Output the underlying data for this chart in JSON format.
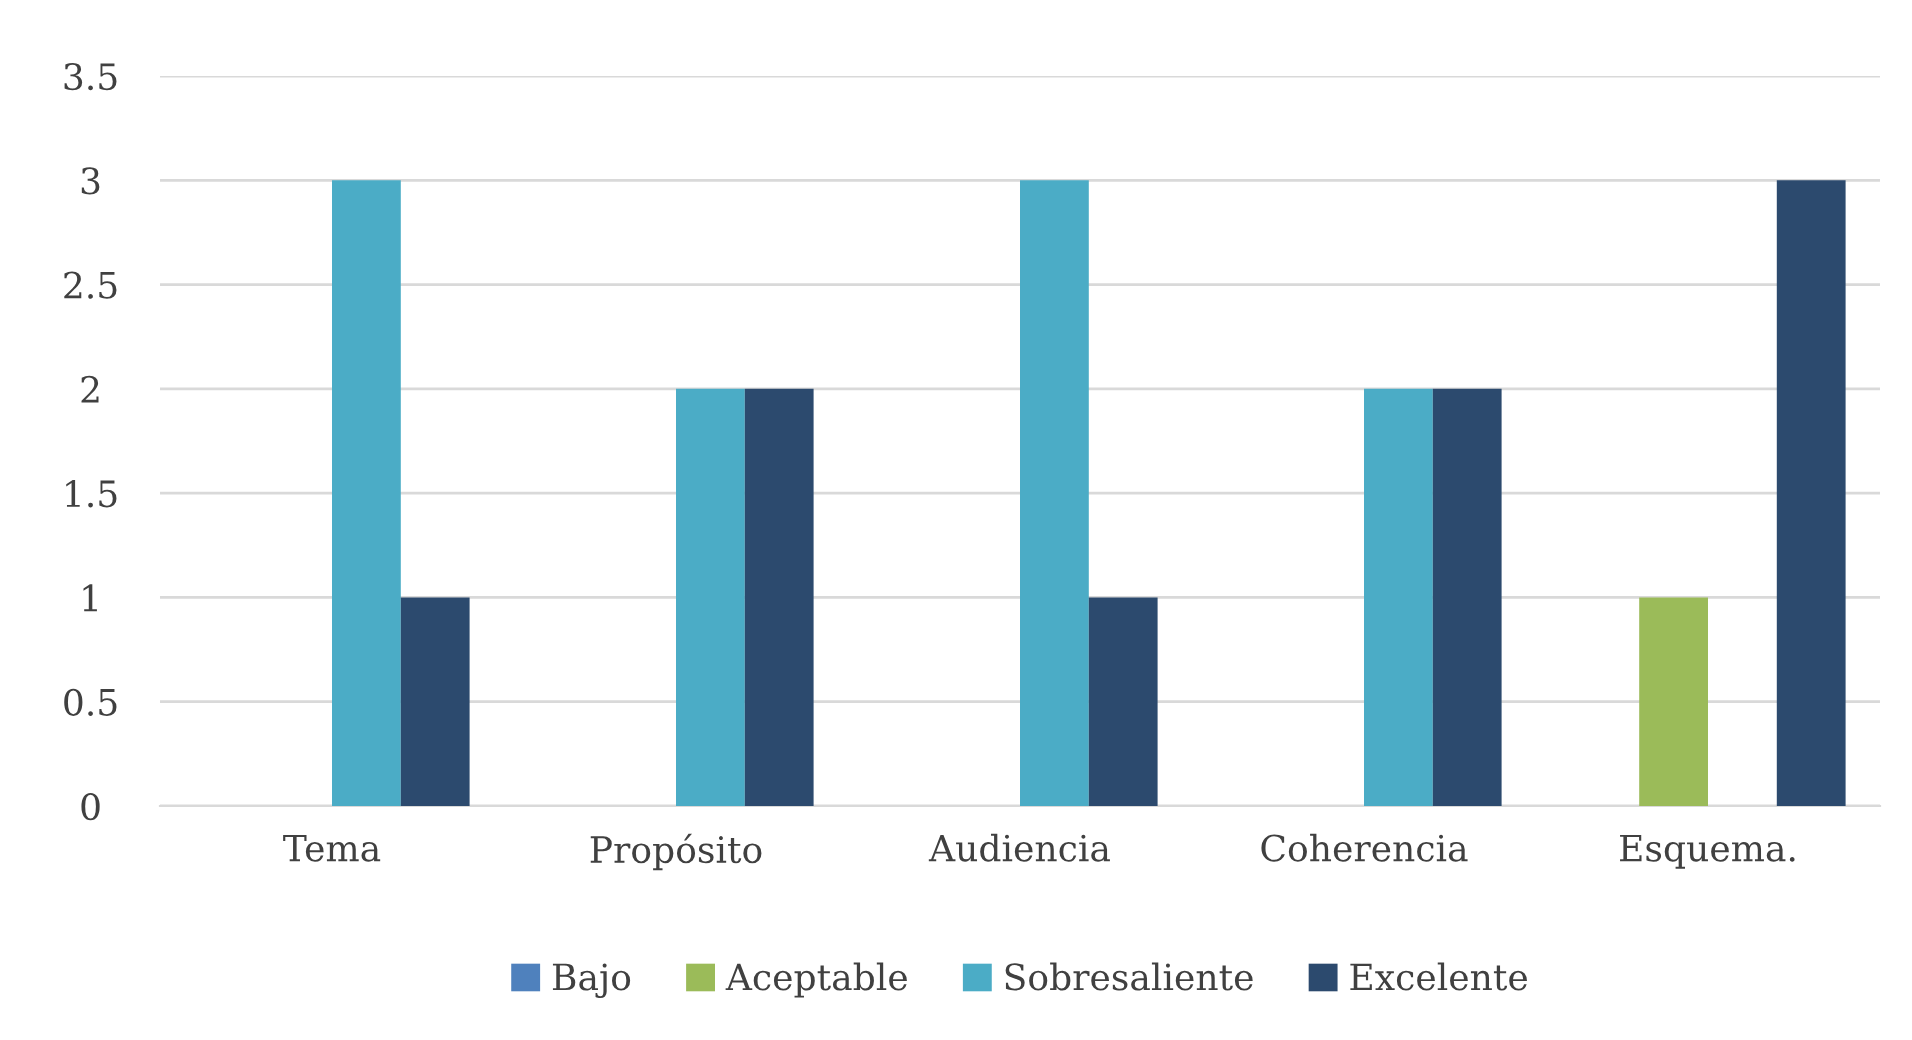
{
  "chart_data": {
    "type": "bar",
    "categories": [
      "Tema",
      "Propósito",
      "Audiencia",
      "Coherencia",
      "Esquema."
    ],
    "series": [
      {
        "name": "Bajo",
        "color": "#4f81bd",
        "values": [
          0,
          0,
          0,
          0,
          0
        ]
      },
      {
        "name": "Aceptable",
        "color": "#9bbb59",
        "values": [
          0,
          0,
          0,
          0,
          1
        ]
      },
      {
        "name": "Sobresaliente",
        "color": "#4bacc6",
        "values": [
          3,
          2,
          3,
          2,
          0
        ]
      },
      {
        "name": "Excelente",
        "color": "#2c4a6e",
        "values": [
          1,
          2,
          1,
          2,
          3
        ]
      }
    ],
    "ylim": [
      0,
      3.5
    ],
    "yticks": [
      0,
      0.5,
      1,
      1.5,
      2,
      2.5,
      3,
      3.5
    ],
    "grid": "y",
    "legend": "bottom"
  }
}
